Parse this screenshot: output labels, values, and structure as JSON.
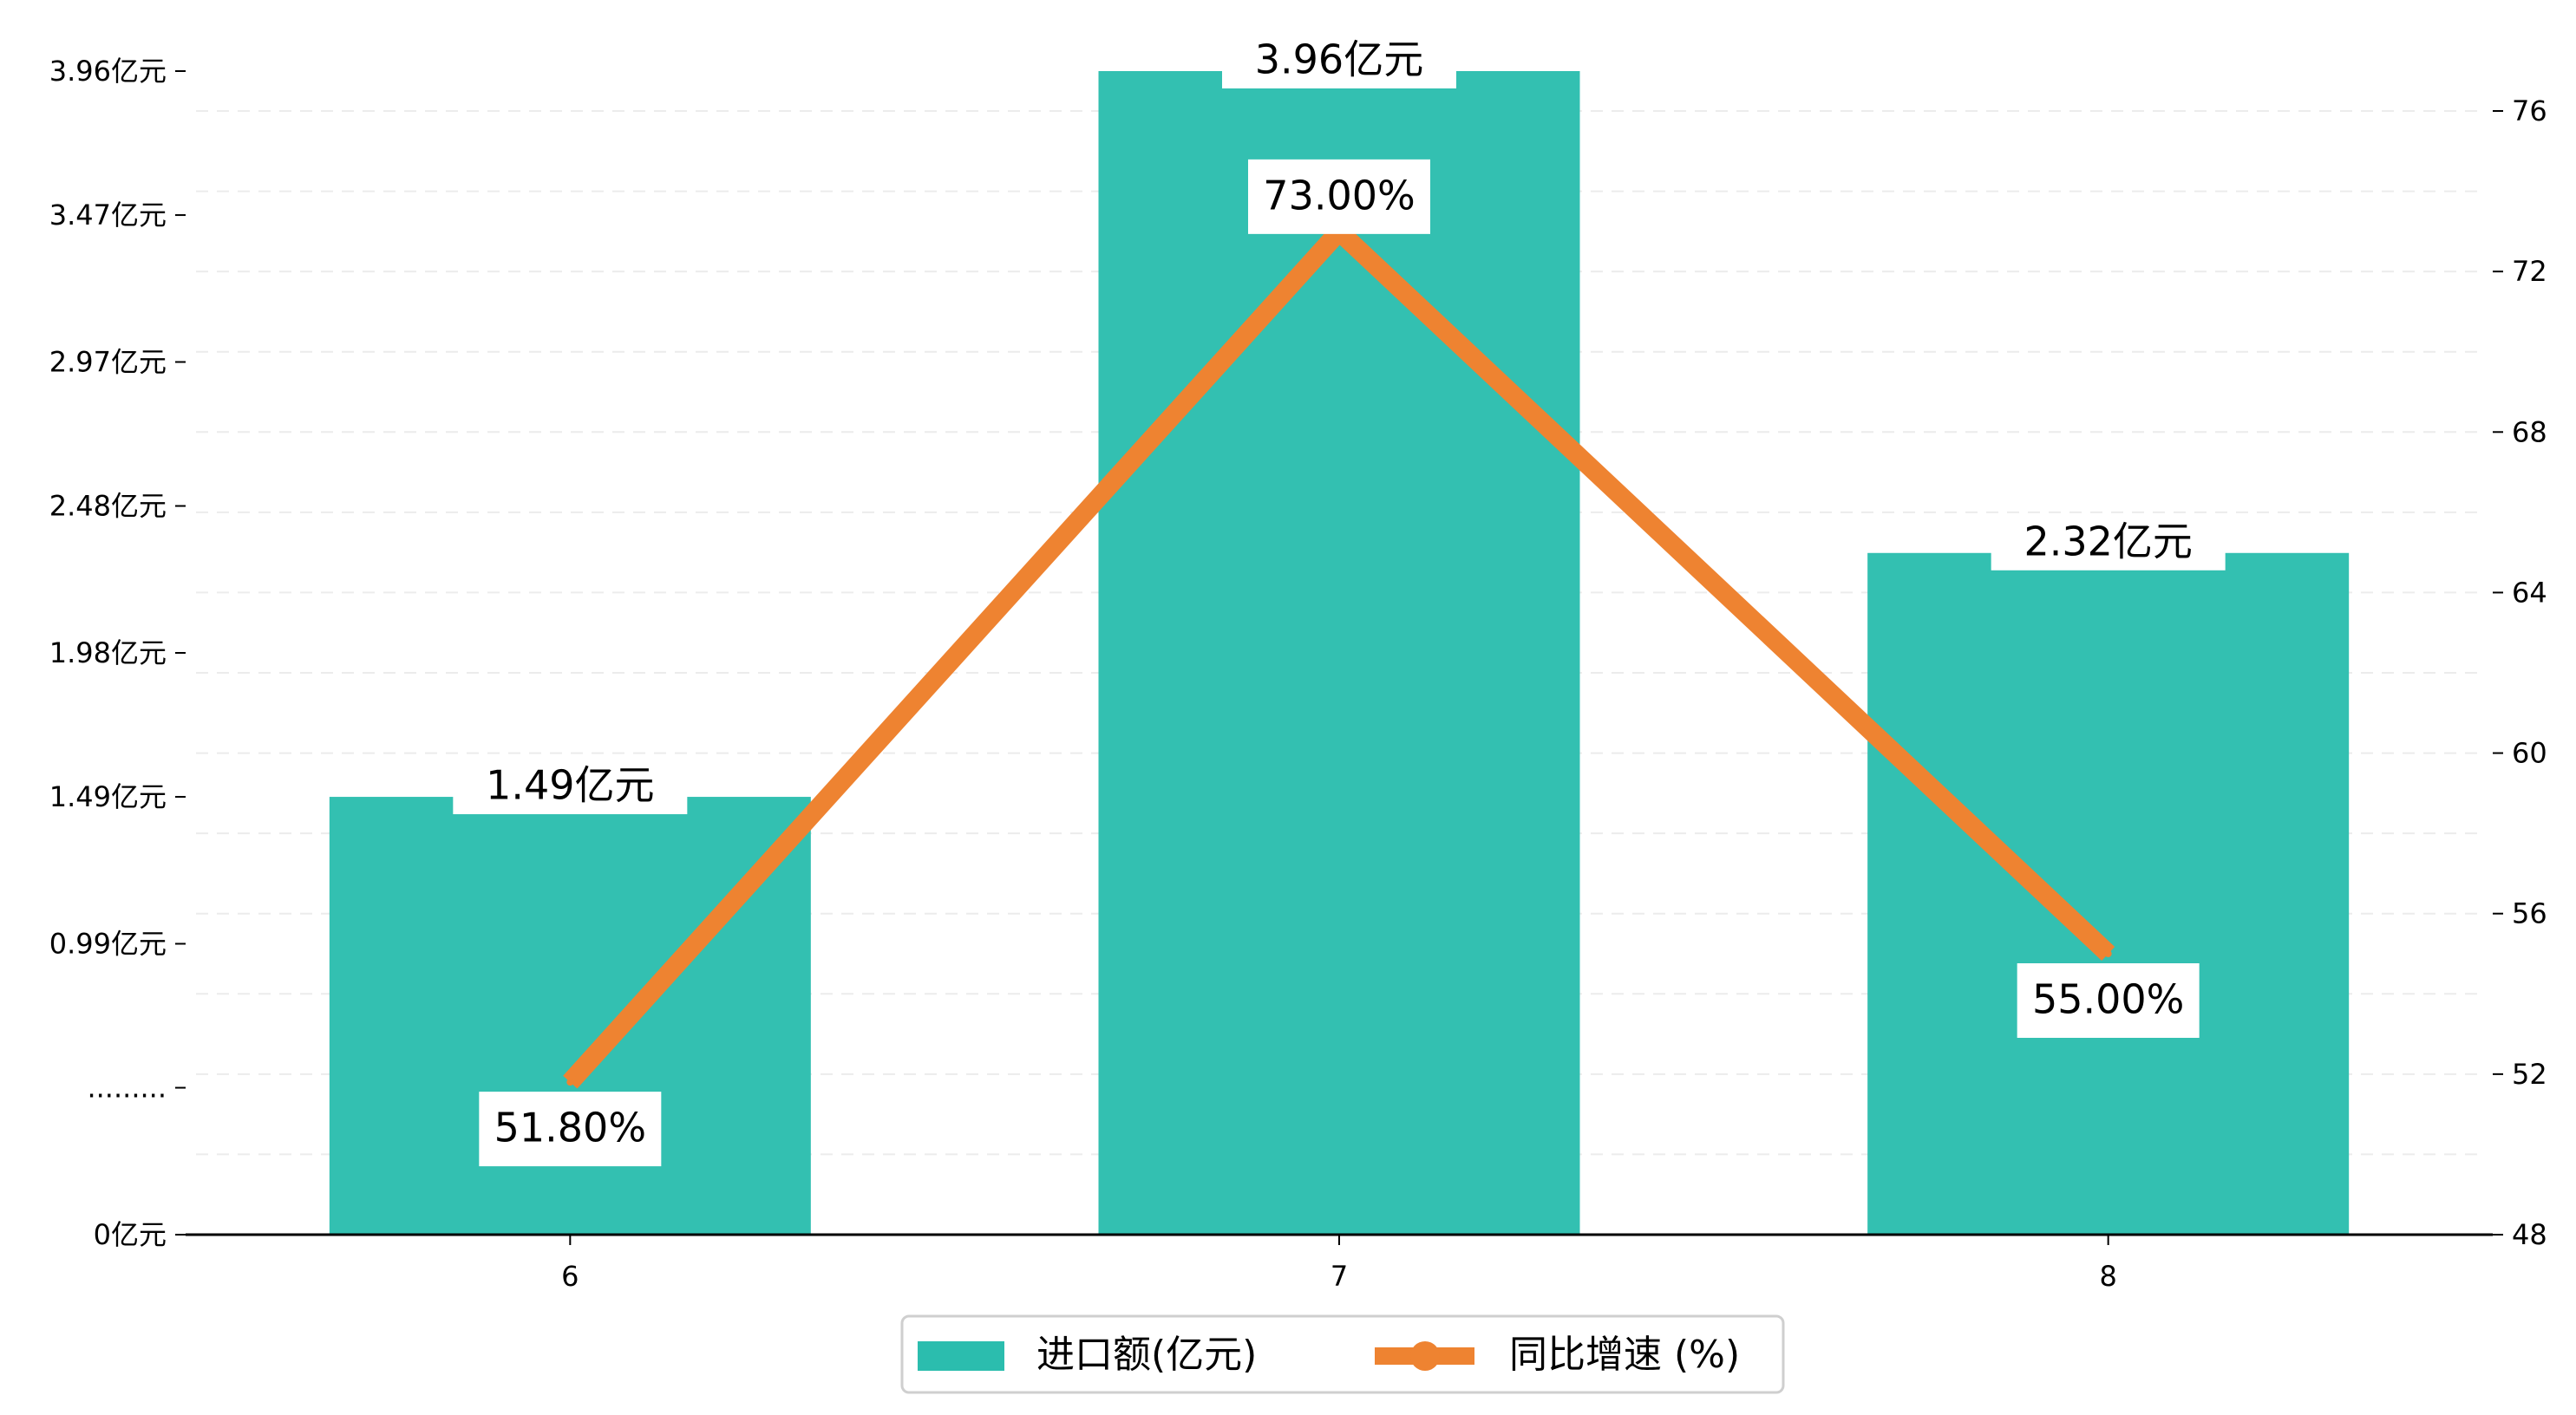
{
  "chart_data": {
    "type": "bar",
    "categories": [
      "6",
      "7",
      "8"
    ],
    "series": [
      {
        "name": "进口额(亿元)",
        "type": "bar",
        "axis": "left",
        "color": "#2bbdae",
        "values": [
          1.49,
          3.96,
          2.32
        ],
        "data_labels": [
          "1.49亿元",
          "3.96亿元",
          "2.32亿元"
        ]
      },
      {
        "name": "同比增速 (%)",
        "type": "line",
        "axis": "right",
        "color": "#ee8331",
        "values": [
          51.8,
          73.0,
          55.0
        ],
        "data_labels": [
          "51.80%",
          "73.00%",
          "55.00%"
        ]
      }
    ],
    "y_left": {
      "ticks": [
        0,
        0.5,
        0.99,
        1.49,
        1.98,
        2.48,
        2.97,
        3.47,
        3.96
      ],
      "tick_labels": [
        "0亿元",
        ".........",
        "0.99亿元",
        "1.49亿元",
        "1.98亿元",
        "2.48亿元",
        "2.97亿元",
        "3.47亿元",
        "3.96亿元"
      ],
      "range": [
        0,
        3.96
      ]
    },
    "y_right": {
      "ticks": [
        48,
        52,
        56,
        60,
        64,
        68,
        72,
        76
      ],
      "tick_labels": [
        "48",
        "52",
        "56",
        "60",
        "64",
        "68",
        "72",
        "76"
      ],
      "range": [
        48,
        76.96
      ]
    },
    "grid": "horizontal-dashed",
    "legend_position": "bottom-center"
  }
}
